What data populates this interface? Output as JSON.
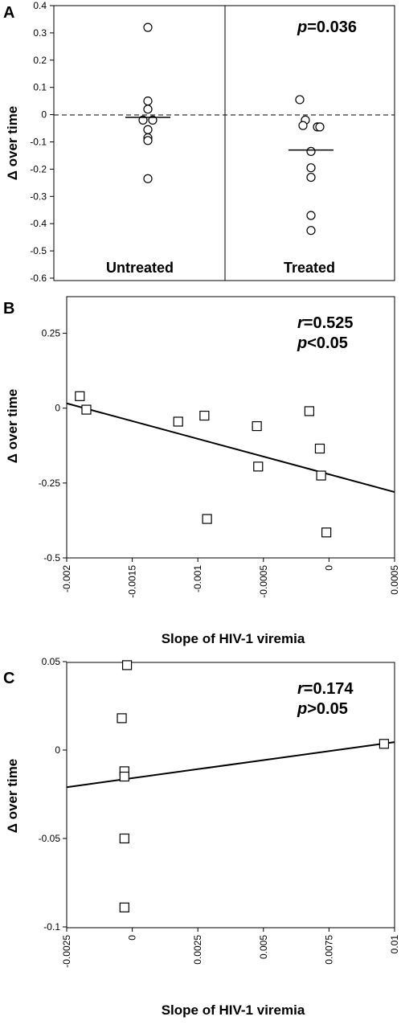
{
  "chart_data": [
    {
      "panel": "A",
      "type": "scatter",
      "ylabel": "Δ over time",
      "ylim": [
        -0.6,
        0.4
      ],
      "yticks": [
        "0.4",
        "0.3",
        "0.2",
        "0.1",
        "0",
        "-0.1",
        "-0.2",
        "-0.3",
        "-0.4",
        "-0.5",
        "-0.6"
      ],
      "reference_line": {
        "y": 0,
        "style": "dashed"
      },
      "annotation": {
        "symbol": "p",
        "text": "=0.036"
      },
      "groups": [
        {
          "name": "Untreated",
          "values": [
            0.32,
            0.05,
            0.02,
            -0.02,
            -0.02,
            -0.055,
            -0.085,
            -0.095,
            -0.235
          ],
          "median": -0.01
        },
        {
          "name": "Treated",
          "values": [
            0.055,
            -0.02,
            -0.04,
            -0.045,
            -0.045,
            -0.135,
            -0.195,
            -0.23,
            -0.37,
            -0.425
          ],
          "median": -0.13
        }
      ]
    },
    {
      "panel": "B",
      "type": "scatter",
      "xlabel": "Slope of HIV-1 viremia",
      "ylabel": "Δ over time",
      "xlim": [
        -0.002,
        0.0005
      ],
      "ylim": [
        -0.5,
        0.375
      ],
      "xticks": [
        "-0.002",
        "-0.0015",
        "-0.001",
        "-0.0005",
        "0",
        "0.0005"
      ],
      "yticks": [
        "0.25",
        "0",
        "-0.25",
        "-0.5"
      ],
      "annotation": {
        "r_symbol": "r",
        "r_text": "=0.525",
        "p_symbol": "p",
        "p_text": "<0.05"
      },
      "x": [
        -0.0019,
        -0.00185,
        -0.00115,
        -0.00095,
        -0.00093,
        -0.00055,
        -0.00054,
        -0.00015,
        -7e-05,
        -6e-05,
        -2e-05
      ],
      "y": [
        0.04,
        -0.005,
        -0.045,
        -0.025,
        -0.37,
        -0.06,
        -0.195,
        -0.01,
        -0.135,
        -0.225,
        -0.415
      ],
      "fit": {
        "x": [
          -0.002,
          0.0005
        ],
        "y": [
          0.016,
          -0.28
        ]
      }
    },
    {
      "panel": "C",
      "type": "scatter",
      "xlabel": "Slope of HIV-1 viremia",
      "ylabel": "Δ over time",
      "xlim": [
        -0.0025,
        0.01
      ],
      "ylim": [
        -0.1,
        0.05
      ],
      "xticks": [
        "-0.0025",
        "0",
        "0.0025",
        "0.005",
        "0.0075",
        "0.01"
      ],
      "yticks": [
        "0.05",
        "0",
        "-0.05",
        "-0.1"
      ],
      "annotation": {
        "r_symbol": "r",
        "r_text": "=0.174",
        "p_symbol": "p",
        "p_text": ">0.05"
      },
      "x": [
        -0.0002,
        -0.0004,
        -0.0003,
        -0.0003,
        -0.0003,
        -0.0003,
        0.0096
      ],
      "y": [
        0.048,
        0.018,
        -0.012,
        -0.015,
        -0.05,
        -0.089,
        0.0035
      ],
      "fit": {
        "x": [
          -0.0025,
          0.01
        ],
        "y": [
          -0.021,
          0.0045
        ]
      }
    }
  ]
}
